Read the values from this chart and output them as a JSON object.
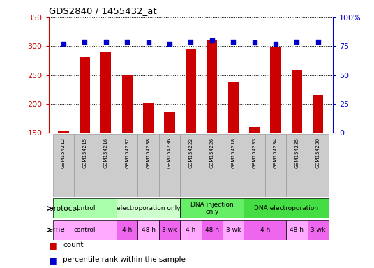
{
  "title": "GDS2840 / 1455432_at",
  "samples": [
    "GSM154212",
    "GSM154215",
    "GSM154216",
    "GSM154237",
    "GSM154238",
    "GSM154236",
    "GSM154222",
    "GSM154226",
    "GSM154218",
    "GSM154233",
    "GSM154234",
    "GSM154235",
    "GSM154230"
  ],
  "counts": [
    152,
    281,
    291,
    251,
    202,
    187,
    296,
    311,
    237,
    160,
    298,
    258,
    216
  ],
  "percentiles": [
    77,
    79,
    79,
    79,
    78,
    77,
    79,
    80,
    79,
    78,
    77,
    79,
    79
  ],
  "ylim_left": [
    150,
    350
  ],
  "ylim_right": [
    0,
    100
  ],
  "yticks_left": [
    150,
    200,
    250,
    300,
    350
  ],
  "yticks_right": [
    0,
    25,
    50,
    75,
    100
  ],
  "bar_color": "#cc0000",
  "dot_color": "#0000cc",
  "protocol_groups": [
    {
      "label": "control",
      "start": 0,
      "end": 3,
      "color": "#aaffaa"
    },
    {
      "label": "electroporation only",
      "start": 3,
      "end": 6,
      "color": "#ccffcc"
    },
    {
      "label": "DNA injection\nonly",
      "start": 6,
      "end": 9,
      "color": "#66ee66"
    },
    {
      "label": "DNA electroporation",
      "start": 9,
      "end": 13,
      "color": "#44dd44"
    }
  ],
  "time_groups": [
    {
      "label": "control",
      "start": 0,
      "end": 3,
      "color": "#ffaaff"
    },
    {
      "label": "4 h",
      "start": 3,
      "end": 4,
      "color": "#ee66ee"
    },
    {
      "label": "48 h",
      "start": 4,
      "end": 5,
      "color": "#ffaaff"
    },
    {
      "label": "3 wk",
      "start": 5,
      "end": 6,
      "color": "#ee66ee"
    },
    {
      "label": "4 h",
      "start": 6,
      "end": 7,
      "color": "#ffaaff"
    },
    {
      "label": "48 h",
      "start": 7,
      "end": 8,
      "color": "#ee66ee"
    },
    {
      "label": "3 wk",
      "start": 8,
      "end": 9,
      "color": "#ffaaff"
    },
    {
      "label": "4 h",
      "start": 9,
      "end": 11,
      "color": "#ee66ee"
    },
    {
      "label": "48 h",
      "start": 11,
      "end": 12,
      "color": "#ffaaff"
    },
    {
      "label": "3 wk",
      "start": 12,
      "end": 13,
      "color": "#ee66ee"
    }
  ],
  "left_color": "#cc0000",
  "right_color": "#0000cc",
  "sample_box_color": "#cccccc",
  "sample_box_edge": "#999999"
}
